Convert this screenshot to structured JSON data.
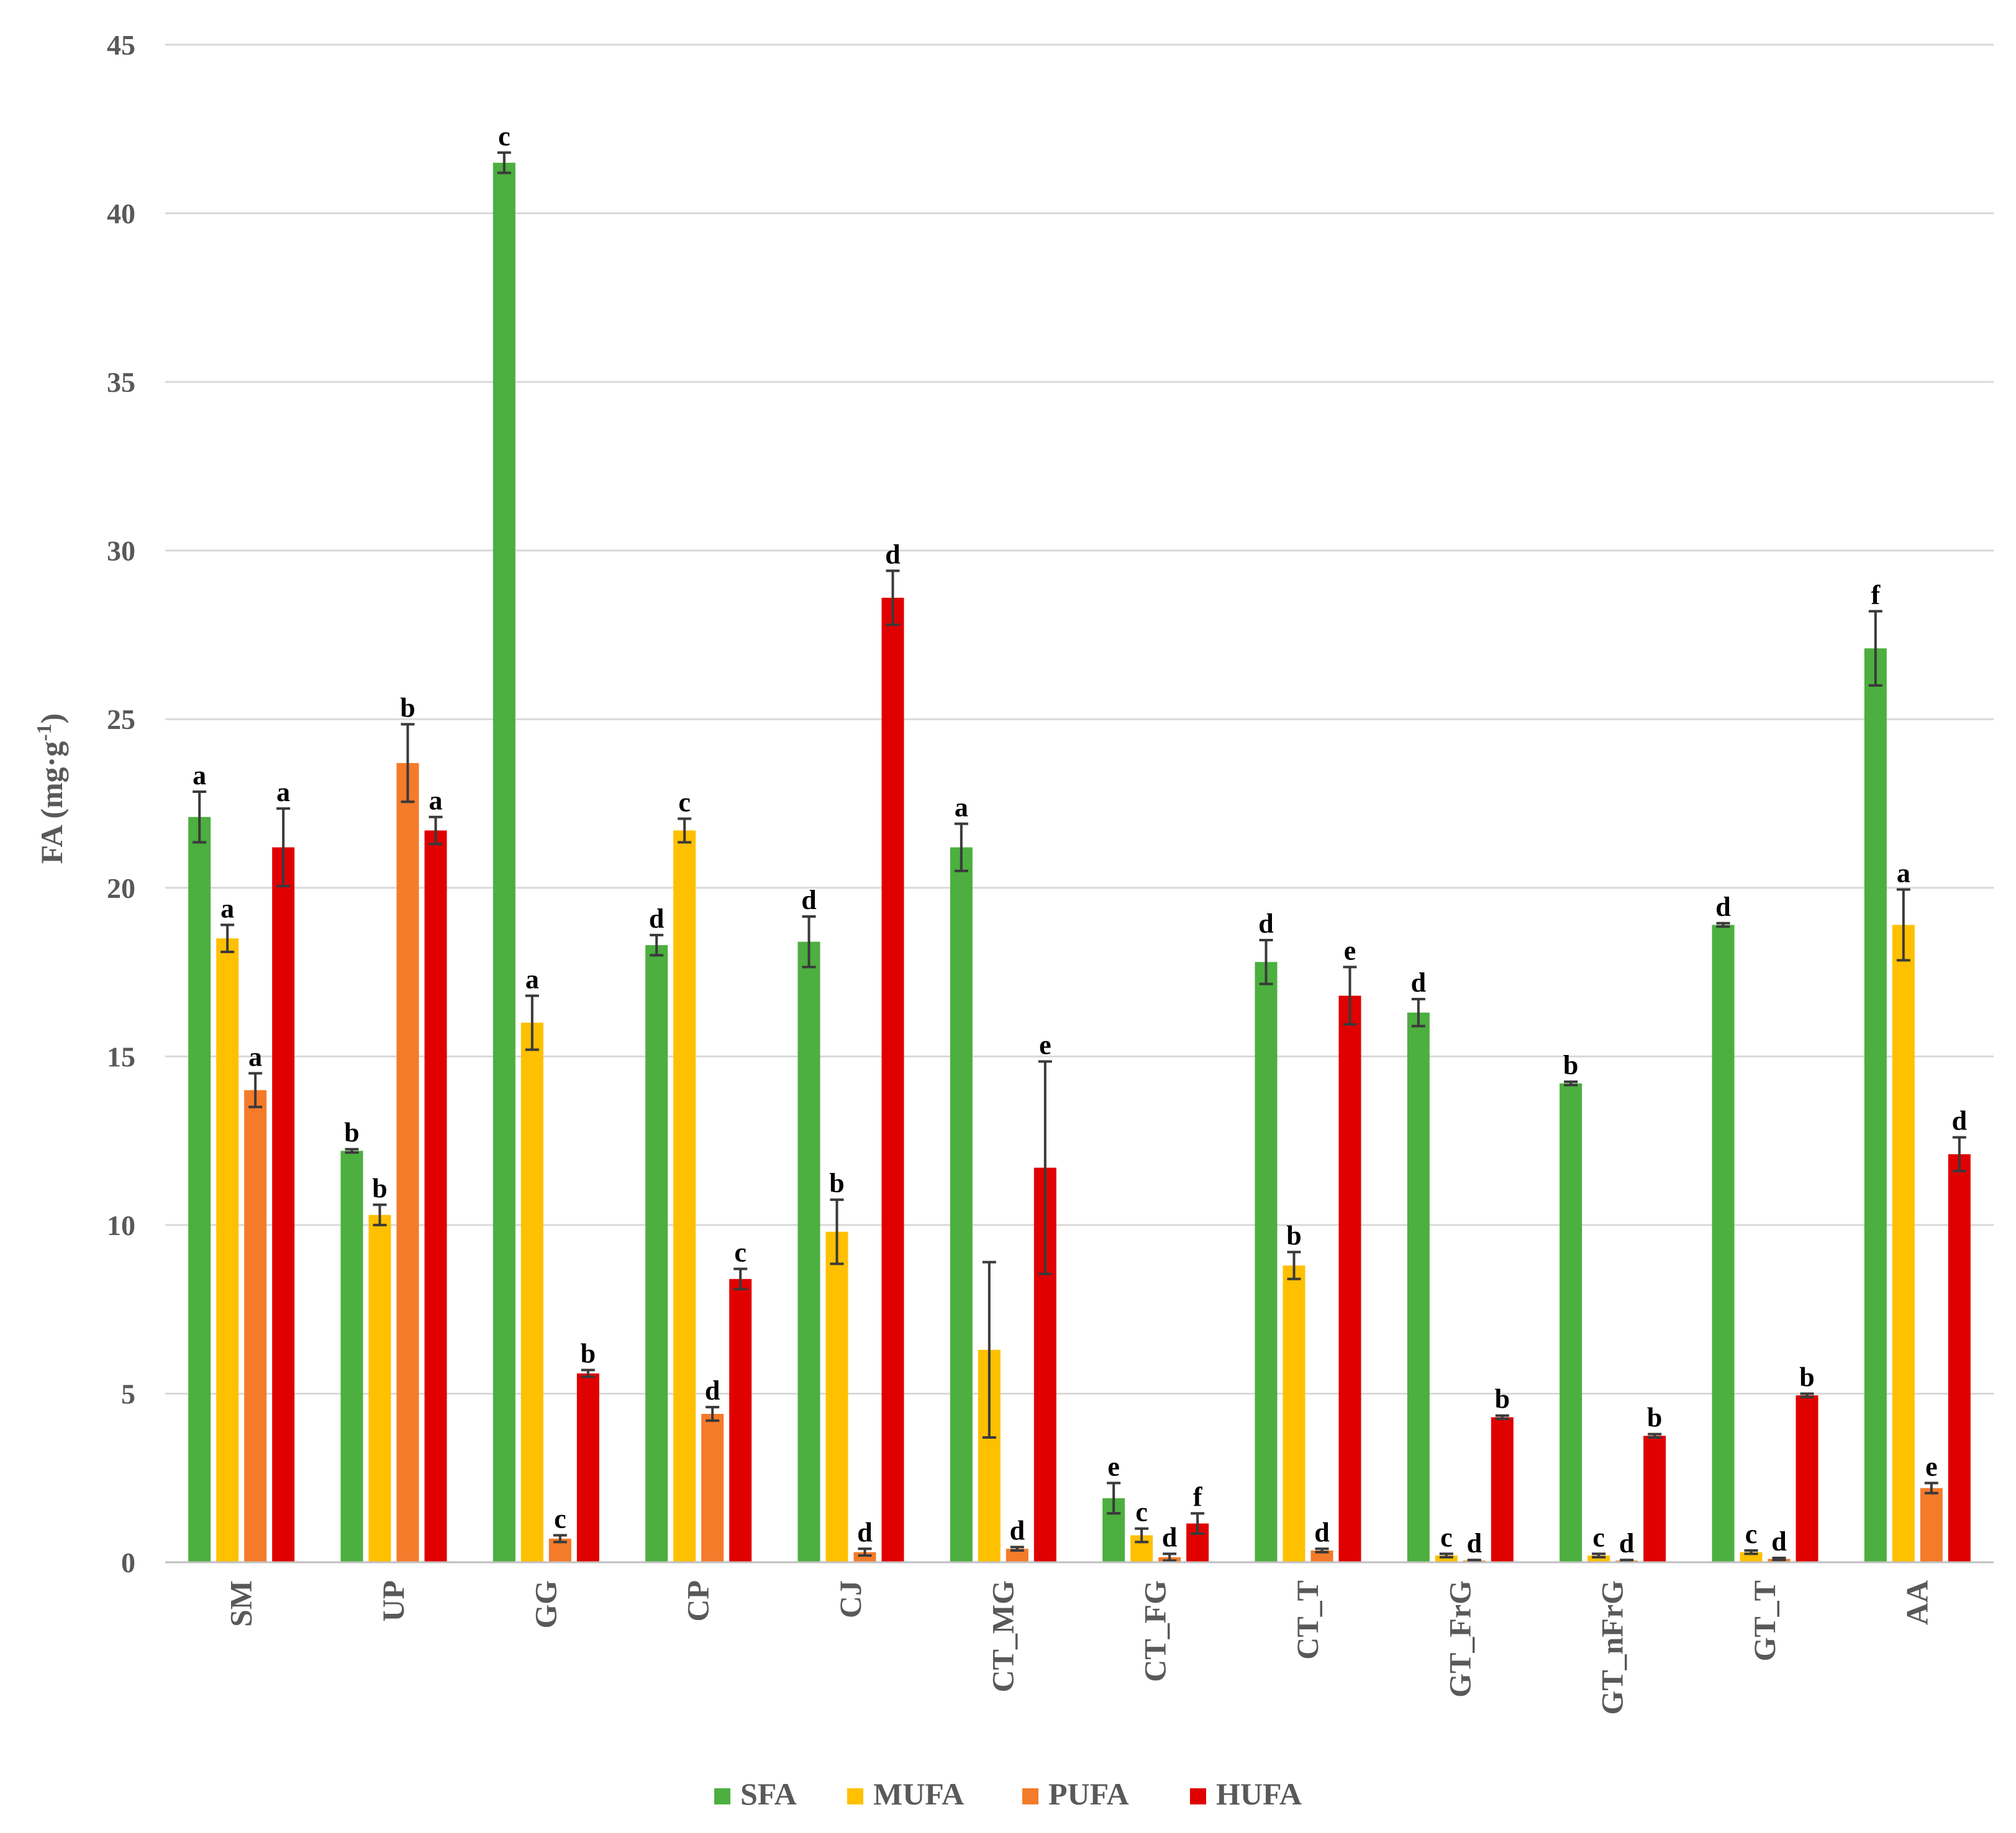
{
  "chart_data": {
    "type": "bar",
    "title": "",
    "xlabel": "",
    "ylabel": "FA (mg·g",
    "ylabel_superscript": "-1",
    "ylabel_close": ")",
    "ylim": [
      0,
      45
    ],
    "yticks": [
      0,
      5,
      10,
      15,
      20,
      25,
      30,
      35,
      40,
      45
    ],
    "grid": true,
    "legend_position": "bottom",
    "categories": [
      "SM",
      "UP",
      "GG",
      "CP",
      "CJ",
      "CT_MG",
      "CT_FG",
      "CT_T",
      "GT_FrG",
      "GT_nFrG",
      "GT_T",
      "AA"
    ],
    "series": [
      {
        "name": "SFA",
        "color": "#4caf3f",
        "values": [
          22.1,
          12.2,
          41.5,
          18.3,
          18.4,
          21.2,
          1.9,
          17.8,
          16.3,
          14.2,
          18.9,
          27.1
        ],
        "errors": [
          0.75,
          0.05,
          0.3,
          0.3,
          0.75,
          0.7,
          0.45,
          0.65,
          0.4,
          0.05,
          0.05,
          1.1
        ],
        "labels": [
          "a",
          "b",
          "c",
          "d",
          "d",
          "a",
          "e",
          "d",
          "d",
          "b",
          "d",
          "f"
        ]
      },
      {
        "name": "MUFA",
        "color": "#ffc000",
        "values": [
          18.5,
          10.3,
          16.0,
          21.7,
          9.8,
          6.3,
          0.8,
          8.8,
          0.2,
          0.2,
          0.3,
          18.9
        ],
        "errors": [
          0.4,
          0.3,
          0.8,
          0.35,
          0.95,
          2.6,
          0.2,
          0.4,
          0.05,
          0.05,
          0.05,
          1.05
        ],
        "labels": [
          "a",
          "b",
          "a",
          "c",
          "b",
          "",
          "c",
          "b",
          "c",
          "c",
          "c",
          "a"
        ]
      },
      {
        "name": "PUFA",
        "color": "#f47b2a",
        "values": [
          14.0,
          23.7,
          0.7,
          4.4,
          0.3,
          0.4,
          0.15,
          0.35,
          0.05,
          0.05,
          0.1,
          2.2
        ],
        "errors": [
          0.5,
          1.15,
          0.1,
          0.2,
          0.1,
          0.05,
          0.1,
          0.05,
          0.02,
          0.02,
          0.03,
          0.15
        ],
        "labels": [
          "a",
          "b",
          "c",
          "d",
          "d",
          "d",
          "d",
          "d",
          "d",
          "d",
          "d",
          "e"
        ]
      },
      {
        "name": "HUFA",
        "color": "#e00000",
        "values": [
          21.2,
          21.7,
          5.6,
          8.4,
          28.6,
          11.7,
          1.15,
          16.8,
          4.3,
          3.75,
          4.95,
          12.1
        ],
        "errors": [
          1.15,
          0.4,
          0.1,
          0.3,
          0.8,
          3.15,
          0.3,
          0.85,
          0.05,
          0.05,
          0.05,
          0.5
        ],
        "labels": [
          "a",
          "a",
          "b",
          "c",
          "d",
          "e",
          "f",
          "e",
          "b",
          "b",
          "b",
          "d"
        ]
      }
    ]
  }
}
